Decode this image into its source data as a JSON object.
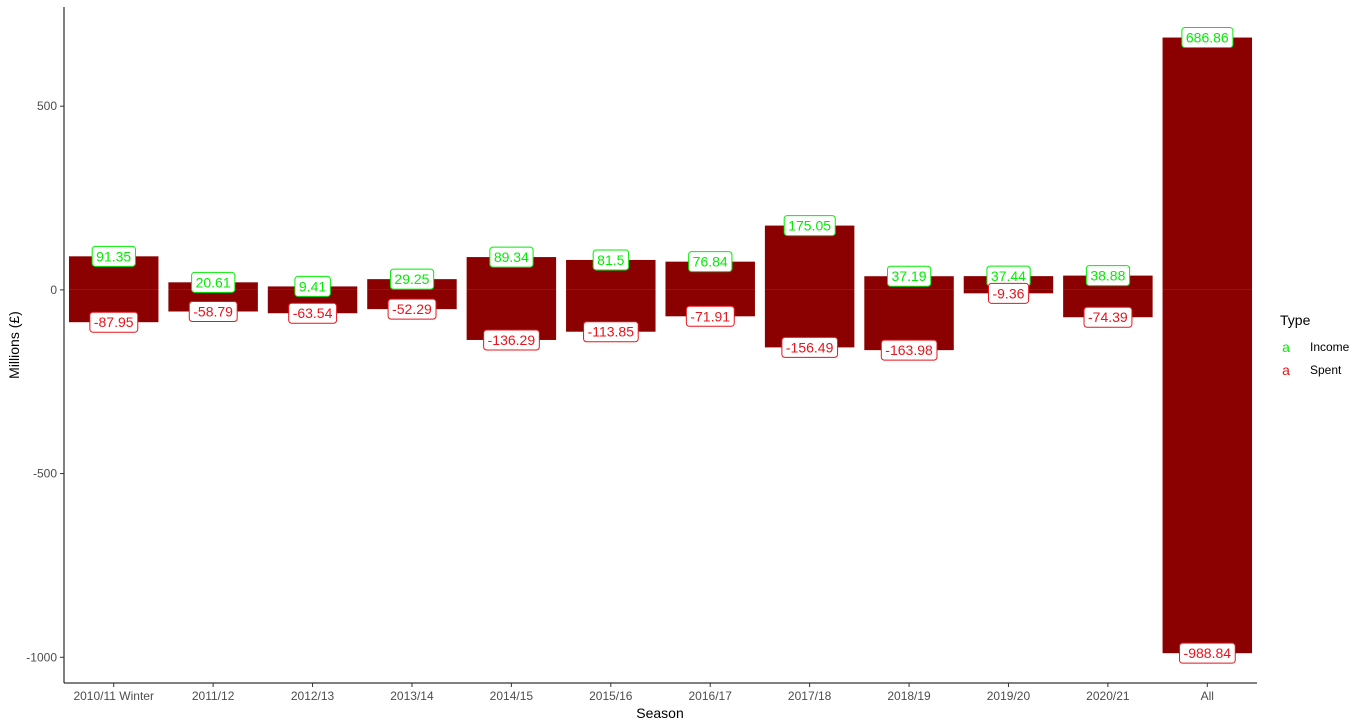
{
  "chart_data": {
    "type": "bar",
    "categories": [
      "2010/11 Winter",
      "2011/12",
      "2012/13",
      "2013/14",
      "2014/15",
      "2015/16",
      "2016/17",
      "2017/18",
      "2018/19",
      "2019/20",
      "2020/21",
      "All"
    ],
    "series": [
      {
        "name": "Income",
        "values": [
          91.35,
          20.61,
          9.41,
          29.25,
          89.34,
          81.5,
          76.84,
          175.05,
          37.19,
          37.44,
          38.88,
          686.86
        ],
        "label_color": "#00ee00"
      },
      {
        "name": "Spent",
        "values": [
          -87.95,
          -58.79,
          -63.54,
          -52.29,
          -136.29,
          -113.85,
          -71.91,
          -156.49,
          -163.98,
          -9.36,
          -74.39,
          -988.84
        ],
        "label_color": "#e8141c"
      }
    ],
    "bar_color": "#8b0000",
    "xlabel": "Season",
    "ylabel": "Millions (£)",
    "ylim": [
      -1070,
      770
    ],
    "yticks": [
      -1000,
      -500,
      0,
      500
    ],
    "grid": false,
    "legend": {
      "title": "Type",
      "placement": "right",
      "key_glyph": "a"
    }
  }
}
